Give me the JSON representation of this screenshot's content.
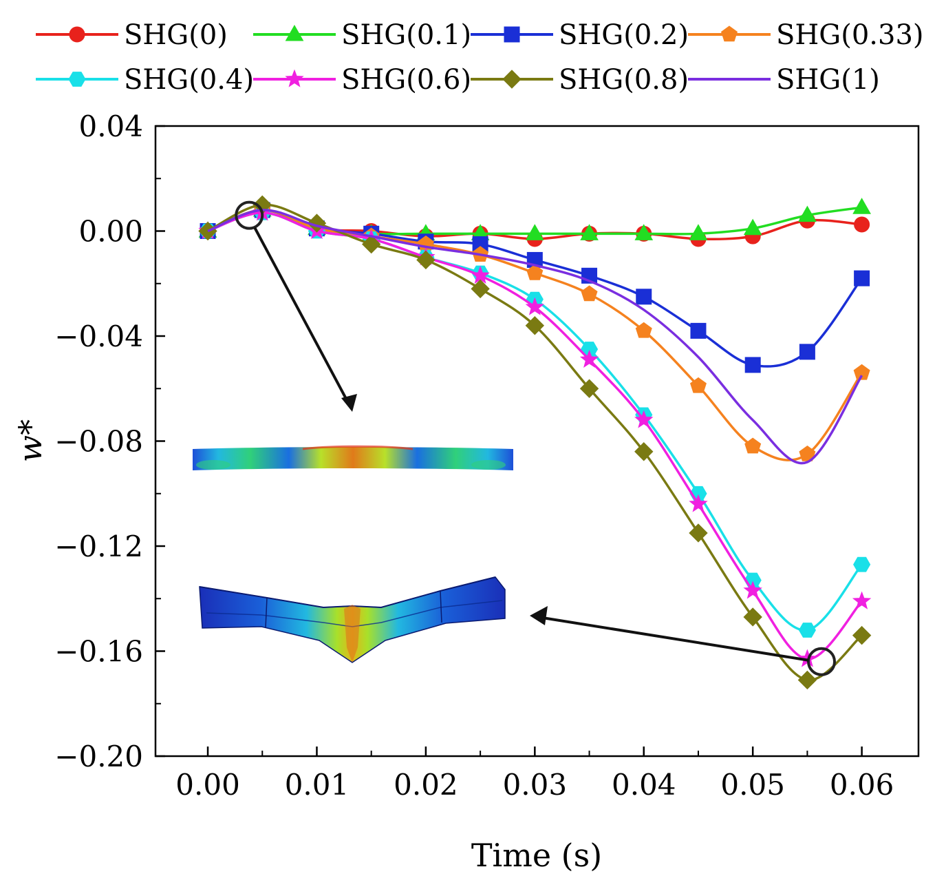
{
  "chart_data": {
    "type": "line",
    "title": "",
    "xlabel": "Time (s)",
    "ylabel": "w*",
    "xlim": [
      -0.0048,
      0.0652
    ],
    "ylim": [
      -0.2,
      0.04
    ],
    "x_ticks": [
      0.0,
      0.01,
      0.02,
      0.03,
      0.04,
      0.05,
      0.06
    ],
    "x_tick_labels": [
      "0.00",
      "0.01",
      "0.02",
      "0.03",
      "0.04",
      "0.05",
      "0.06"
    ],
    "y_ticks": [
      0.04,
      0.0,
      -0.04,
      -0.08,
      -0.12,
      -0.16,
      -0.2
    ],
    "y_tick_labels": [
      "0.04",
      "0.00",
      "−0.04",
      "−0.08",
      "−0.12",
      "−0.16",
      "−0.20"
    ],
    "grid": false,
    "legend_position": "top",
    "x": [
      0.0,
      0.005,
      0.01,
      0.015,
      0.02,
      0.025,
      0.03,
      0.035,
      0.04,
      0.045,
      0.05,
      0.055,
      0.06
    ],
    "series": [
      {
        "name": "SHG(0)",
        "color": "#e8221c",
        "marker": "circle",
        "values": [
          0.0,
          0.008,
          0.001,
          0.0,
          -0.002,
          -0.001,
          -0.003,
          -0.001,
          -0.001,
          -0.003,
          -0.002,
          0.004,
          0.0025
        ]
      },
      {
        "name": "SHG(0.1)",
        "color": "#22dd22",
        "marker": "triangle",
        "values": [
          0.0,
          0.008,
          0.001,
          -0.001,
          -0.001,
          -0.001,
          -0.001,
          -0.001,
          -0.001,
          -0.001,
          0.001,
          0.006,
          0.009
        ]
      },
      {
        "name": "SHG(0.2)",
        "color": "#1a2fd6",
        "marker": "square",
        "values": [
          0.0,
          0.008,
          0.001,
          -0.001,
          -0.004,
          -0.005,
          -0.011,
          -0.017,
          -0.025,
          -0.038,
          -0.051,
          -0.046,
          -0.018
        ]
      },
      {
        "name": "SHG(0.33)",
        "color": "#f5821f",
        "marker": "pentagon",
        "values": [
          0.0,
          0.008,
          0.001,
          -0.002,
          -0.005,
          -0.009,
          -0.016,
          -0.024,
          -0.038,
          -0.059,
          -0.082,
          -0.085,
          -0.054
        ]
      },
      {
        "name": "SHG(0.4)",
        "color": "#19e0e8",
        "marker": "hexagon",
        "values": [
          0.0,
          0.007,
          0.0,
          -0.003,
          -0.01,
          -0.016,
          -0.026,
          -0.045,
          -0.07,
          -0.1,
          -0.133,
          -0.152,
          -0.127
        ]
      },
      {
        "name": "SHG(0.6)",
        "color": "#f020e0",
        "marker": "star",
        "values": [
          0.0,
          0.007,
          0.0,
          -0.003,
          -0.01,
          -0.017,
          -0.029,
          -0.049,
          -0.072,
          -0.104,
          -0.137,
          -0.163,
          -0.141
        ]
      },
      {
        "name": "SHG(0.8)",
        "color": "#7a7a12",
        "marker": "diamond",
        "values": [
          0.0,
          0.01,
          0.003,
          -0.005,
          -0.011,
          -0.022,
          -0.036,
          -0.06,
          -0.084,
          -0.115,
          -0.147,
          -0.171,
          -0.154
        ]
      },
      {
        "name": "SHG(1)",
        "color": "#7a2ee0",
        "marker": "none",
        "values": [
          0.0,
          0.008,
          0.002,
          -0.002,
          -0.006,
          -0.009,
          -0.013,
          -0.019,
          -0.03,
          -0.048,
          -0.072,
          -0.088,
          -0.055
        ]
      }
    ],
    "annotations": [
      {
        "type": "circle-callout",
        "at": [
          0.0038,
          0.006
        ],
        "target": "inset-top",
        "description": "deformation contour at early time"
      },
      {
        "type": "circle-callout",
        "at": [
          0.0563,
          -0.164
        ],
        "target": "inset-bottom",
        "description": "deformation contour at peak deflection"
      }
    ]
  }
}
